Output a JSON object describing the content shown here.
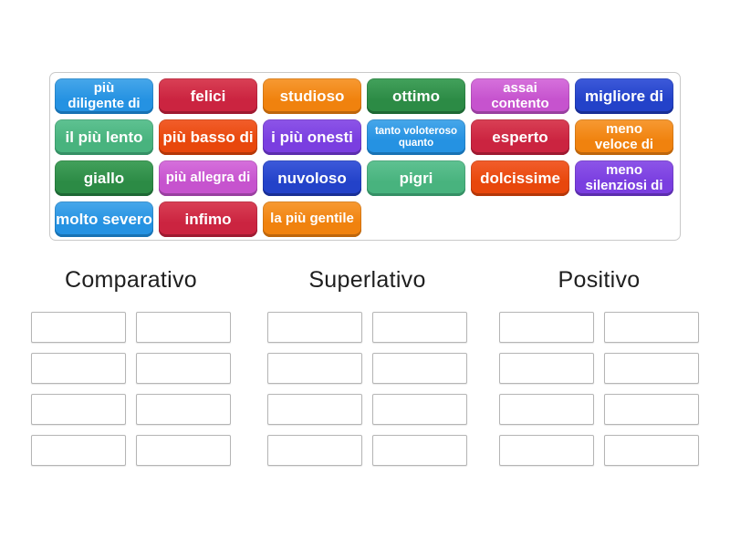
{
  "palette": {
    "blue": {
      "light": "#47A7EA",
      "main": "#2592E2",
      "dark": "#1872B4"
    },
    "crimson": {
      "light": "#D94055",
      "main": "#CB2440",
      "dark": "#9E1A31"
    },
    "orange": {
      "light": "#F79A33",
      "main": "#F0820E",
      "dark": "#BE660B"
    },
    "green": {
      "light": "#43A15C",
      "main": "#2C8B45",
      "dark": "#1E6834"
    },
    "orchid": {
      "light": "#D671DC",
      "main": "#C653CE",
      "dark": "#9940A0"
    },
    "royalblue": {
      "light": "#3D5ADA",
      "main": "#2342C9",
      "dark": "#192F96"
    },
    "seagreen": {
      "light": "#5FC292",
      "main": "#48B37E",
      "dark": "#359065"
    },
    "orangered": {
      "light": "#F25E2B",
      "main": "#E8470C",
      "dark": "#B53708"
    },
    "violet": {
      "light": "#8D55E8",
      "main": "#7A3EE0",
      "dark": "#5C2EAE"
    }
  },
  "word_bank": {
    "rows": [
      [
        {
          "label": "più\ndiligente di",
          "color": "blue",
          "size": "md"
        },
        {
          "label": "felici",
          "color": "crimson",
          "size": "lg"
        },
        {
          "label": "studioso",
          "color": "orange",
          "size": "lg"
        },
        {
          "label": "ottimo",
          "color": "green",
          "size": "lg"
        },
        {
          "label": "assai\ncontento",
          "color": "orchid",
          "size": "md"
        },
        {
          "label": "migliore di",
          "color": "royalblue",
          "size": "lg"
        }
      ],
      [
        {
          "label": "il più lento",
          "color": "seagreen",
          "size": "lg"
        },
        {
          "label": "più basso di",
          "color": "orangered",
          "size": "lg"
        },
        {
          "label": "i più onesti",
          "color": "violet",
          "size": "lg"
        },
        {
          "label": "tanto voloteroso\nquanto",
          "color": "blue",
          "size": "sm"
        },
        {
          "label": "esperto",
          "color": "crimson",
          "size": "lg"
        },
        {
          "label": "meno\nveloce di",
          "color": "orange",
          "size": "md"
        }
      ],
      [
        {
          "label": "giallo",
          "color": "green",
          "size": "lg"
        },
        {
          "label": "più allegra di",
          "color": "orchid",
          "size": "md"
        },
        {
          "label": "nuvoloso",
          "color": "royalblue",
          "size": "lg"
        },
        {
          "label": "pigri",
          "color": "seagreen",
          "size": "lg"
        },
        {
          "label": "dolcissime",
          "color": "orangered",
          "size": "lg"
        },
        {
          "label": "meno\nsilenziosi di",
          "color": "violet",
          "size": "md"
        }
      ],
      [
        {
          "label": "molto severo",
          "color": "blue",
          "size": "lg"
        },
        {
          "label": "infimo",
          "color": "crimson",
          "size": "lg"
        },
        {
          "label": "la più gentile",
          "color": "orange",
          "size": "md"
        }
      ]
    ]
  },
  "groups": [
    {
      "id": "comparativo",
      "label": "Comparativo",
      "slot_count": 8
    },
    {
      "id": "superlativo",
      "label": "Superlativo",
      "slot_count": 8
    },
    {
      "id": "positivo",
      "label": "Positivo",
      "slot_count": 8
    }
  ]
}
